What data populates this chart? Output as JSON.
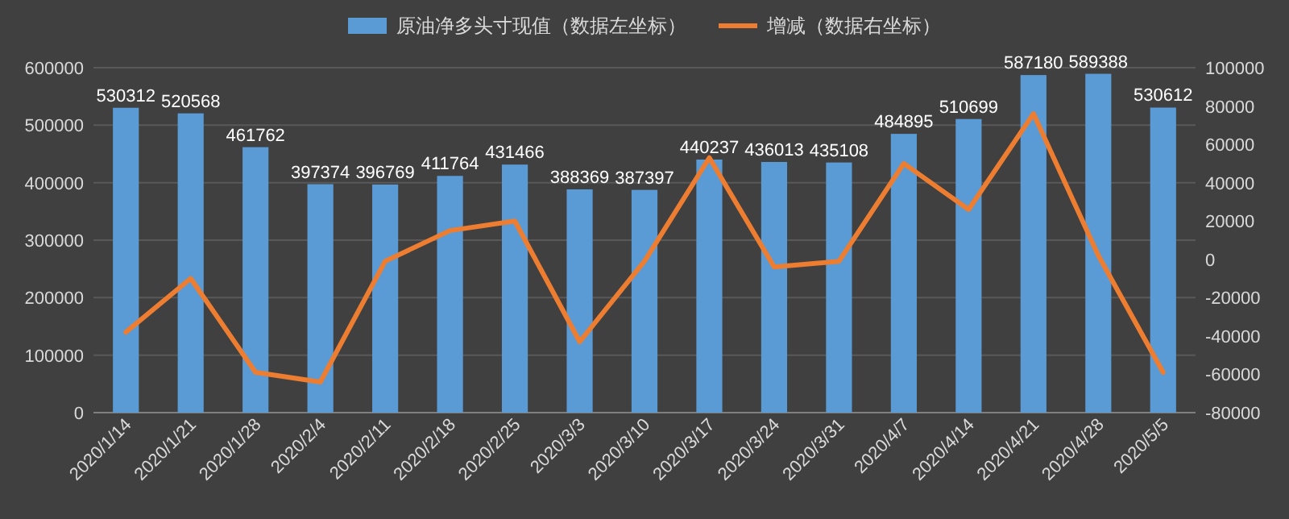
{
  "chart_data": {
    "type": "bar",
    "categories": [
      "2020/1/14",
      "2020/1/21",
      "2020/1/28",
      "2020/2/4",
      "2020/2/11",
      "2020/2/18",
      "2020/2/25",
      "2020/3/3",
      "2020/3/10",
      "2020/3/17",
      "2020/3/24",
      "2020/3/31",
      "2020/4/7",
      "2020/4/14",
      "2020/4/21",
      "2020/4/28",
      "2020/5/5"
    ],
    "series": [
      {
        "name": "原油净多头寸现值（数据左坐标）",
        "color": "#5b9bd5",
        "values": [
          530312,
          520568,
          461762,
          397374,
          396769,
          411764,
          431466,
          388369,
          387397,
          440237,
          436013,
          435108,
          484895,
          510699,
          587180,
          589388,
          530612
        ],
        "value_labels": [
          "530312",
          "520568",
          "461762",
          "397374",
          "396769",
          "411764",
          "431466",
          "388369",
          "387397",
          "440237",
          "436013",
          "435108",
          "484895",
          "510699",
          "587180",
          "589388",
          "530612"
        ]
      },
      {
        "name": "增减（数据右坐标）",
        "type": "line",
        "axis": "y2",
        "color": "#ed7d31",
        "marker": "none",
        "line_style": "solid",
        "values": [
          -38000,
          -10000,
          -59000,
          -64000,
          -1000,
          15000,
          20000,
          -43000,
          -1000,
          53000,
          -4000,
          -1000,
          50000,
          26000,
          76000,
          2000,
          -59000
        ]
      }
    ],
    "ylim": [
      0,
      600000
    ],
    "yticks": [
      0,
      100000,
      200000,
      300000,
      400000,
      500000,
      600000
    ],
    "y2lim": [
      -80000,
      100000
    ],
    "y2ticks": [
      -80000,
      -60000,
      -40000,
      -20000,
      0,
      20000,
      40000,
      60000,
      80000,
      100000
    ],
    "grid": "y",
    "legend": "top"
  }
}
